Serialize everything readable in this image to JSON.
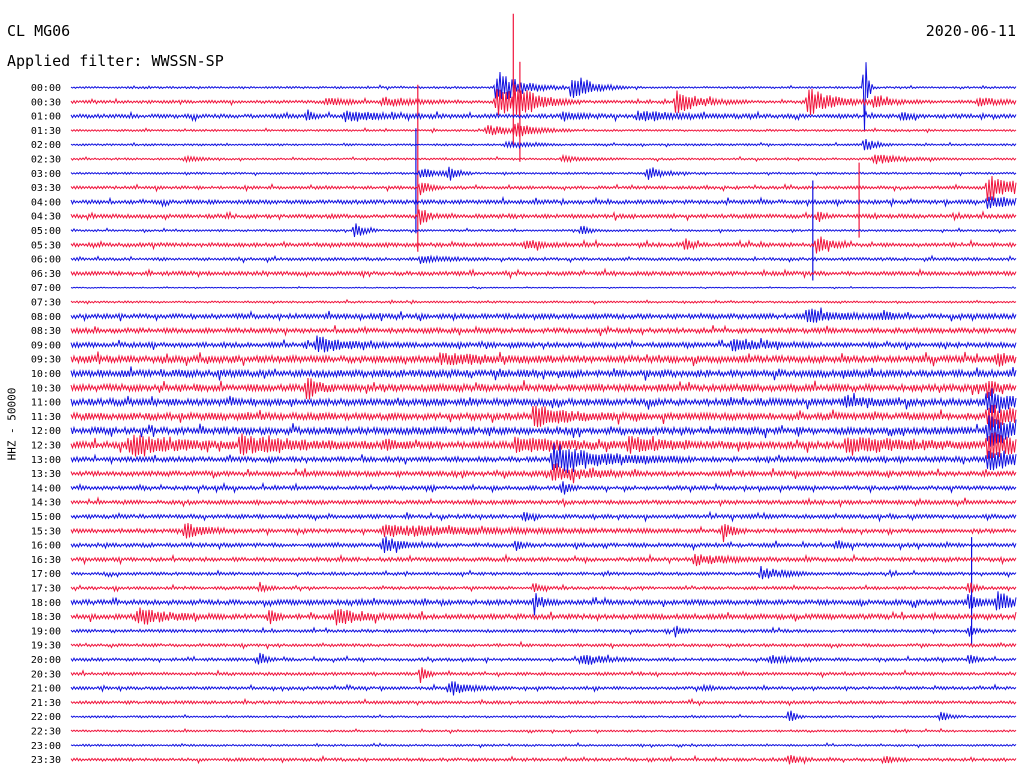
{
  "header": {
    "station": "CL MG06",
    "date": "2020-06-11",
    "filter": "Applied filter: WWSSN-SP",
    "channel": "HHZ - 50000"
  },
  "colors": {
    "odd": "#1010e0",
    "even": "#f0143c",
    "text": "#000000"
  },
  "chart_data": {
    "type": "line",
    "title": "",
    "xlabel": "",
    "ylabel": "HHZ - 50000",
    "row_labels": [
      "00:00",
      "00:30",
      "01:00",
      "01:30",
      "02:00",
      "02:30",
      "03:00",
      "03:30",
      "04:00",
      "04:30",
      "05:00",
      "05:30",
      "06:00",
      "06:30",
      "07:00",
      "07:30",
      "08:00",
      "08:30",
      "09:00",
      "09:30",
      "10:00",
      "10:30",
      "11:00",
      "11:30",
      "12:00",
      "12:30",
      "13:00",
      "13:30",
      "14:00",
      "14:30",
      "15:00",
      "15:30",
      "16:00",
      "16:30",
      "17:00",
      "17:30",
      "18:00",
      "18:30",
      "19:00",
      "19:30",
      "20:00",
      "20:30",
      "21:00",
      "21:30",
      "22:00",
      "22:30",
      "23:00",
      "23:30"
    ],
    "noise_level": [
      1,
      1.5,
      2,
      1,
      1,
      1,
      1,
      1.5,
      2,
      2,
      1,
      2,
      1.5,
      2,
      0.5,
      1,
      2.5,
      2.5,
      2.5,
      3.5,
      3.5,
      3.5,
      3.5,
      3.5,
      3.5,
      3.5,
      2.5,
      2.5,
      2,
      2,
      2,
      2,
      2,
      2,
      1.5,
      1.5,
      2.5,
      2.5,
      1.5,
      1.5,
      1.5,
      1.5,
      1.5,
      1.5,
      1,
      1,
      1,
      1.5
    ],
    "events": [
      {
        "row": 0,
        "pos": 0.45,
        "amp": 18,
        "dur": 0.025
      },
      {
        "row": 0,
        "pos": 0.53,
        "amp": 16,
        "dur": 0.02
      },
      {
        "row": 0,
        "pos": 0.84,
        "amp": 50,
        "dur": 0.003
      },
      {
        "row": 1,
        "pos": 0.27,
        "amp": 4,
        "dur": 0.02
      },
      {
        "row": 1,
        "pos": 0.33,
        "amp": 5,
        "dur": 0.03
      },
      {
        "row": 1,
        "pos": 0.45,
        "amp": 16,
        "dur": 0.03
      },
      {
        "row": 1,
        "pos": 0.47,
        "amp": 14,
        "dur": 0.02
      },
      {
        "row": 1,
        "pos": 0.64,
        "amp": 12,
        "dur": 0.025
      },
      {
        "row": 1,
        "pos": 0.78,
        "amp": 15,
        "dur": 0.025
      },
      {
        "row": 1,
        "pos": 0.85,
        "amp": 6,
        "dur": 0.02
      },
      {
        "row": 1,
        "pos": 0.96,
        "amp": 5,
        "dur": 0.02
      },
      {
        "row": 2,
        "pos": 0.25,
        "amp": 6,
        "dur": 0.006
      },
      {
        "row": 2,
        "pos": 0.29,
        "amp": 5,
        "dur": 0.04
      },
      {
        "row": 2,
        "pos": 0.52,
        "amp": 4,
        "dur": 0.02
      },
      {
        "row": 2,
        "pos": 0.6,
        "amp": 5,
        "dur": 0.04
      },
      {
        "row": 2,
        "pos": 0.88,
        "amp": 6,
        "dur": 0.006
      },
      {
        "row": 3,
        "pos": 0.44,
        "amp": 5,
        "dur": 0.03
      },
      {
        "row": 3,
        "pos": 0.47,
        "amp": 6,
        "dur": 0.02
      },
      {
        "row": 4,
        "pos": 0.46,
        "amp": 4,
        "dur": 0.02
      },
      {
        "row": 4,
        "pos": 0.84,
        "amp": 8,
        "dur": 0.01
      },
      {
        "row": 5,
        "pos": 0.12,
        "amp": 3,
        "dur": 0.015
      },
      {
        "row": 5,
        "pos": 0.52,
        "amp": 3,
        "dur": 0.02
      },
      {
        "row": 5,
        "pos": 0.85,
        "amp": 5,
        "dur": 0.03
      },
      {
        "row": 6,
        "pos": 0.37,
        "amp": 5,
        "dur": 0.02
      },
      {
        "row": 6,
        "pos": 0.4,
        "amp": 7,
        "dur": 0.008
      },
      {
        "row": 6,
        "pos": 0.61,
        "amp": 8,
        "dur": 0.015
      },
      {
        "row": 7,
        "pos": 0.37,
        "amp": 8,
        "dur": 0.008
      },
      {
        "row": 7,
        "pos": 0.97,
        "amp": 15,
        "dur": 0.03
      },
      {
        "row": 8,
        "pos": 0.97,
        "amp": 8,
        "dur": 0.02
      },
      {
        "row": 9,
        "pos": 0.37,
        "amp": 12,
        "dur": 0.006
      },
      {
        "row": 9,
        "pos": 0.79,
        "amp": 6,
        "dur": 0.006
      },
      {
        "row": 10,
        "pos": 0.3,
        "amp": 10,
        "dur": 0.008
      },
      {
        "row": 10,
        "pos": 0.54,
        "amp": 6,
        "dur": 0.008
      },
      {
        "row": 11,
        "pos": 0.48,
        "amp": 4,
        "dur": 0.02
      },
      {
        "row": 11,
        "pos": 0.65,
        "amp": 6,
        "dur": 0.008
      },
      {
        "row": 11,
        "pos": 0.79,
        "amp": 12,
        "dur": 0.01
      },
      {
        "row": 12,
        "pos": 0.37,
        "amp": 4,
        "dur": 0.02
      },
      {
        "row": 16,
        "pos": 0.78,
        "amp": 8,
        "dur": 0.025
      },
      {
        "row": 16,
        "pos": 0.86,
        "amp": 5,
        "dur": 0.01
      },
      {
        "row": 18,
        "pos": 0.26,
        "amp": 8,
        "dur": 0.03
      },
      {
        "row": 18,
        "pos": 0.7,
        "amp": 6,
        "dur": 0.03
      },
      {
        "row": 19,
        "pos": 0.39,
        "amp": 5,
        "dur": 0.04
      },
      {
        "row": 19,
        "pos": 0.98,
        "amp": 7,
        "dur": 0.01
      },
      {
        "row": 21,
        "pos": 0.25,
        "amp": 14,
        "dur": 0.01
      },
      {
        "row": 21,
        "pos": 0.97,
        "amp": 8,
        "dur": 0.01
      },
      {
        "row": 22,
        "pos": 0.82,
        "amp": 6,
        "dur": 0.02
      },
      {
        "row": 22,
        "pos": 0.97,
        "amp": 16,
        "dur": 0.02
      },
      {
        "row": 23,
        "pos": 0.49,
        "amp": 12,
        "dur": 0.03
      },
      {
        "row": 23,
        "pos": 0.97,
        "amp": 14,
        "dur": 0.03
      },
      {
        "row": 24,
        "pos": 0.97,
        "amp": 16,
        "dur": 0.03
      },
      {
        "row": 25,
        "pos": 0.06,
        "amp": 10,
        "dur": 0.05
      },
      {
        "row": 25,
        "pos": 0.18,
        "amp": 8,
        "dur": 0.06
      },
      {
        "row": 25,
        "pos": 0.33,
        "amp": 5,
        "dur": 0.02
      },
      {
        "row": 25,
        "pos": 0.47,
        "amp": 7,
        "dur": 0.05
      },
      {
        "row": 25,
        "pos": 0.59,
        "amp": 6,
        "dur": 0.04
      },
      {
        "row": 25,
        "pos": 0.82,
        "amp": 8,
        "dur": 0.06
      },
      {
        "row": 25,
        "pos": 0.97,
        "amp": 14,
        "dur": 0.03
      },
      {
        "row": 26,
        "pos": 0.51,
        "amp": 16,
        "dur": 0.05
      },
      {
        "row": 26,
        "pos": 0.97,
        "amp": 12,
        "dur": 0.03
      },
      {
        "row": 27,
        "pos": 0.51,
        "amp": 10,
        "dur": 0.03
      },
      {
        "row": 28,
        "pos": 0.52,
        "amp": 8,
        "dur": 0.006
      },
      {
        "row": 30,
        "pos": 0.48,
        "amp": 6,
        "dur": 0.006
      },
      {
        "row": 31,
        "pos": 0.12,
        "amp": 8,
        "dur": 0.02
      },
      {
        "row": 31,
        "pos": 0.33,
        "amp": 6,
        "dur": 0.1
      },
      {
        "row": 31,
        "pos": 0.69,
        "amp": 10,
        "dur": 0.01
      },
      {
        "row": 32,
        "pos": 0.33,
        "amp": 8,
        "dur": 0.02
      },
      {
        "row": 32,
        "pos": 0.47,
        "amp": 5,
        "dur": 0.006
      },
      {
        "row": 32,
        "pos": 0.81,
        "amp": 5,
        "dur": 0.006
      },
      {
        "row": 33,
        "pos": 0.66,
        "amp": 6,
        "dur": 0.03
      },
      {
        "row": 34,
        "pos": 0.73,
        "amp": 7,
        "dur": 0.02
      },
      {
        "row": 35,
        "pos": 0.2,
        "amp": 6,
        "dur": 0.006
      },
      {
        "row": 35,
        "pos": 0.49,
        "amp": 6,
        "dur": 0.006
      },
      {
        "row": 35,
        "pos": 0.95,
        "amp": 8,
        "dur": 0.006
      },
      {
        "row": 36,
        "pos": 0.49,
        "amp": 10,
        "dur": 0.01
      },
      {
        "row": 36,
        "pos": 0.95,
        "amp": 10,
        "dur": 0.01
      },
      {
        "row": 36,
        "pos": 0.98,
        "amp": 10,
        "dur": 0.02
      },
      {
        "row": 37,
        "pos": 0.07,
        "amp": 8,
        "dur": 0.03
      },
      {
        "row": 37,
        "pos": 0.21,
        "amp": 8,
        "dur": 0.006
      },
      {
        "row": 37,
        "pos": 0.28,
        "amp": 8,
        "dur": 0.03
      },
      {
        "row": 38,
        "pos": 0.64,
        "amp": 6,
        "dur": 0.006
      },
      {
        "row": 38,
        "pos": 0.95,
        "amp": 6,
        "dur": 0.006
      },
      {
        "row": 40,
        "pos": 0.2,
        "amp": 8,
        "dur": 0.006
      },
      {
        "row": 40,
        "pos": 0.54,
        "amp": 7,
        "dur": 0.02
      },
      {
        "row": 40,
        "pos": 0.74,
        "amp": 4,
        "dur": 0.02
      },
      {
        "row": 40,
        "pos": 0.95,
        "amp": 6,
        "dur": 0.006
      },
      {
        "row": 41,
        "pos": 0.37,
        "amp": 10,
        "dur": 0.006
      },
      {
        "row": 42,
        "pos": 0.4,
        "amp": 8,
        "dur": 0.02
      },
      {
        "row": 42,
        "pos": 0.67,
        "amp": 3,
        "dur": 0.01
      },
      {
        "row": 44,
        "pos": 0.76,
        "amp": 8,
        "dur": 0.006
      },
      {
        "row": 44,
        "pos": 0.92,
        "amp": 6,
        "dur": 0.008
      },
      {
        "row": 47,
        "pos": 0.76,
        "amp": 5,
        "dur": 0.01
      },
      {
        "row": 47,
        "pos": 0.86,
        "amp": 4,
        "dur": 0.01
      }
    ],
    "spikes": [
      {
        "row": 1,
        "pos": 0.468,
        "up": 88,
        "down": 45
      },
      {
        "row": 1,
        "pos": 0.475,
        "up": 40,
        "down": 60
      },
      {
        "row": 1,
        "pos": 0.367,
        "up": 17,
        "down": 150
      },
      {
        "row": 6,
        "pos": 0.365,
        "up": 45,
        "down": 60
      },
      {
        "row": 7,
        "pos": 0.834,
        "up": 25,
        "down": 50
      },
      {
        "row": 10,
        "pos": 0.785,
        "up": 50,
        "down": 50
      },
      {
        "row": 32,
        "pos": 0.953,
        "up": 8,
        "down": 100
      }
    ]
  }
}
